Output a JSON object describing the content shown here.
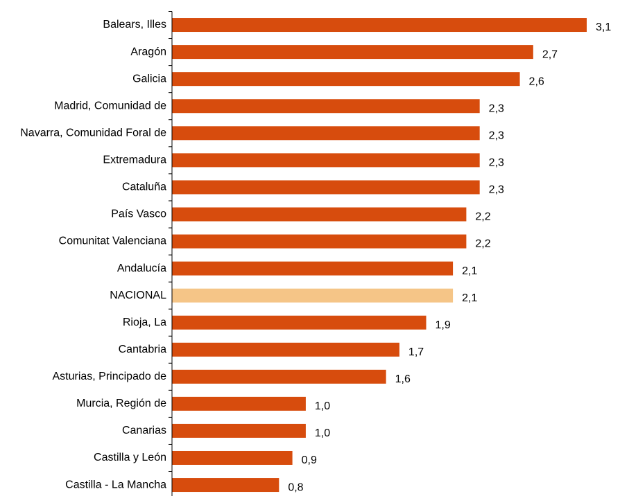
{
  "chart_data": {
    "type": "hbar",
    "categories": [
      "Balears, Illes",
      "Aragón",
      "Galicia",
      "Madrid, Comunidad de",
      "Navarra, Comunidad Foral de",
      "Extremadura",
      "Cataluña",
      "País Vasco",
      "Comunitat Valenciana",
      "Andalucía",
      "NACIONAL",
      "Rioja, La",
      "Cantabria",
      "Asturias, Principado de",
      "Murcia, Región de",
      "Canarias",
      "Castilla y León",
      "Castilla - La Mancha"
    ],
    "values": [
      3.1,
      2.7,
      2.6,
      2.3,
      2.3,
      2.3,
      2.3,
      2.2,
      2.2,
      2.1,
      2.1,
      1.9,
      1.7,
      1.6,
      1.0,
      1.0,
      0.9,
      0.8
    ],
    "value_labels": [
      "3,1",
      "2,7",
      "2,6",
      "2,3",
      "2,3",
      "2,3",
      "2,3",
      "2,2",
      "2,2",
      "2,1",
      "2,1",
      "1,9",
      "1,7",
      "1,6",
      "1,0",
      "1,0",
      "0,9",
      "0,8"
    ],
    "colors": [
      "#d74c0d",
      "#d74c0d",
      "#d74c0d",
      "#d74c0d",
      "#d74c0d",
      "#d74c0d",
      "#d74c0d",
      "#d74c0d",
      "#d74c0d",
      "#d74c0d",
      "#f5c587",
      "#d74c0d",
      "#d74c0d",
      "#d74c0d",
      "#d74c0d",
      "#d74c0d",
      "#d74c0d",
      "#d74c0d"
    ],
    "xlim": [
      0,
      3.1
    ]
  }
}
